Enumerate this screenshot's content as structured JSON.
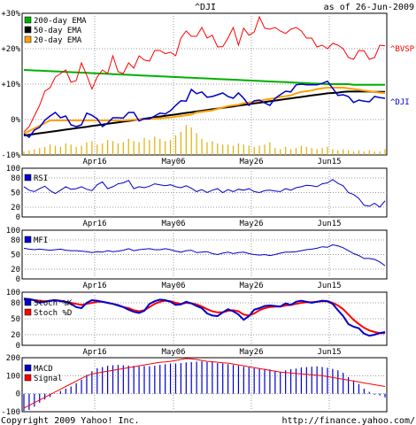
{
  "header": {
    "title": "^DJI",
    "asof": "as of 26-Jun-2009"
  },
  "footer": {
    "copyright": "Copyright 2009 Yahoo! Inc.",
    "url": "http://finance.yahoo.com/"
  },
  "x_ticks": [
    "Apr16",
    "May06",
    "May26",
    "Jun15"
  ],
  "chart_data": [
    {
      "type": "line",
      "panel": "price",
      "ylim": [
        -10,
        30
      ],
      "y_ticks": [
        "+30%",
        "+20%",
        "+10%",
        "0%",
        "-10%"
      ],
      "grid": true,
      "legend_position": "top-left",
      "legend": [
        {
          "label": "200-day EMA",
          "color": "#00b000"
        },
        {
          "label": "50-day EMA",
          "color": "#000000"
        },
        {
          "label": "20-day EMA",
          "color": "#ffa000"
        }
      ],
      "series_labels": [
        {
          "text": "^BVSP",
          "color": "#ff0000"
        },
        {
          "text": "^DJI",
          "color": "#0000cc"
        }
      ],
      "series": [
        {
          "name": "^BVSP",
          "color": "#ff0000",
          "values": [
            -3.5,
            -2,
            1,
            4,
            8,
            9,
            12,
            13,
            14,
            10.5,
            11,
            16,
            12.5,
            8.6,
            12,
            14,
            13,
            18,
            13.5,
            13,
            16,
            14.5,
            18,
            16.8,
            16.5,
            19.5,
            19.5,
            18.6,
            19,
            18,
            23,
            25,
            23.5,
            23.5,
            26,
            23,
            23.8,
            20.5,
            20.6,
            23,
            26,
            21,
            25.8,
            23.8,
            24.7,
            29,
            25.8,
            25.5,
            26,
            25,
            24.3,
            25.5,
            26,
            25,
            23,
            23,
            20.5,
            21,
            20,
            21.5,
            21,
            20,
            17.5,
            17,
            19.5,
            19.4,
            17,
            17.5,
            21,
            20.8
          ]
        },
        {
          "name": "^DJI",
          "color": "#0000cc",
          "values": [
            -4,
            -5,
            -3,
            -2.2,
            -0.2,
            1,
            2,
            0.5,
            1,
            -1.5,
            -2,
            -1.5,
            1.8,
            1.2,
            0.2,
            -2,
            -1,
            0.5,
            0.5,
            0.4,
            2,
            2,
            -0.4,
            0.2,
            0.2,
            1,
            1.8,
            1.6,
            2.5,
            4,
            5.3,
            5.2,
            8.5,
            7.3,
            7.8,
            6.3,
            6.5,
            7,
            7.5,
            6.5,
            6,
            7.5,
            6,
            4,
            5.3,
            5.5,
            4.7,
            4,
            6,
            7,
            8,
            7.8,
            9.8,
            10,
            9.8,
            9.8,
            9.8,
            10.2,
            10.8,
            8.8,
            6.8,
            7,
            6.5,
            4.8,
            5.5,
            5.2,
            5,
            6.5,
            6.2,
            6
          ]
        },
        {
          "name": "200-day EMA",
          "color": "#00b000",
          "values": [
            14,
            13.93,
            13.86,
            13.8,
            13.73,
            13.66,
            13.59,
            13.52,
            13.45,
            13.38,
            13.31,
            13.24,
            13.17,
            13.1,
            13.03,
            12.97,
            12.9,
            12.83,
            12.76,
            12.69,
            12.62,
            12.55,
            12.48,
            12.41,
            12.34,
            12.28,
            12.21,
            12.14,
            12.07,
            12,
            11.93,
            11.86,
            11.79,
            11.72,
            11.66,
            11.59,
            11.52,
            11.45,
            11.38,
            11.31,
            11.24,
            11.17,
            11.1,
            11.03,
            10.97,
            10.9,
            10.83,
            10.76,
            10.69,
            10.62,
            10.55,
            10.48,
            10.41,
            10.34,
            10.28,
            10.21,
            10.14,
            10.07,
            10,
            10,
            10,
            10,
            10,
            9.8,
            9.8,
            9.8,
            9.8,
            9.8,
            9.8,
            9.8
          ]
        },
        {
          "name": "50-day EMA",
          "color": "#000000",
          "values": [
            -4.5,
            -4.29,
            -4.09,
            -3.88,
            -3.68,
            -3.47,
            -3.27,
            -3.06,
            -2.86,
            -2.65,
            -2.45,
            -2.24,
            -2.04,
            -1.83,
            -1.63,
            -1.42,
            -1.21,
            -1.01,
            -0.8,
            -0.6,
            -0.39,
            -0.19,
            0.02,
            0.22,
            0.43,
            0.63,
            0.84,
            1.04,
            1.25,
            1.46,
            1.66,
            1.87,
            2.07,
            2.28,
            2.48,
            2.69,
            2.89,
            3.1,
            3.3,
            3.51,
            3.71,
            3.92,
            4.12,
            4.33,
            4.54,
            4.74,
            4.95,
            5.15,
            5.36,
            5.56,
            5.77,
            5.97,
            6.18,
            6.38,
            6.59,
            6.79,
            7,
            7.2,
            7.41,
            7.5,
            7.6,
            7.8,
            7.9,
            7.9,
            7.9,
            7.9,
            7.9,
            7.8,
            7.8,
            7.8
          ]
        },
        {
          "name": "20-day EMA",
          "color": "#ffa000",
          "values": [
            -4,
            -3.25,
            -2.5,
            -1.74,
            -0.99,
            -0.24,
            -0.24,
            -0.24,
            -0.24,
            -0.24,
            -0.24,
            -0.24,
            -0.24,
            -0.24,
            -0.24,
            -0.24,
            -0.24,
            -0.24,
            -0.24,
            -0.24,
            -0.16,
            -0.08,
            0,
            0.08,
            0.16,
            0.24,
            0.36,
            0.48,
            0.6,
            0.8,
            1,
            1.2,
            1.4,
            2,
            2.2,
            2.4,
            2.6,
            3,
            3.4,
            3.8,
            4,
            4.2,
            4.6,
            4.8,
            5,
            5.2,
            5.6,
            5.8,
            6,
            6.4,
            6.6,
            6.8,
            7.4,
            7.8,
            8,
            8.2,
            8.6,
            8.8,
            9,
            9,
            9,
            9,
            8.8,
            8.6,
            8.4,
            8.2,
            8,
            7.8,
            7.6,
            7.5
          ]
        }
      ],
      "volume_bars": [
        3,
        4,
        5,
        6,
        7,
        9,
        8,
        7,
        10,
        9,
        7,
        8,
        11,
        12,
        9,
        10,
        13,
        12,
        10,
        11,
        14,
        12,
        11,
        15,
        13,
        16,
        14,
        12,
        13,
        17,
        20,
        26,
        24,
        19,
        14,
        11,
        12,
        10,
        9,
        9,
        8,
        10,
        9,
        8,
        7,
        8,
        9,
        11,
        6,
        5,
        7,
        5,
        6,
        8,
        7,
        6,
        5,
        6,
        7,
        5,
        4,
        5,
        4,
        3,
        4,
        3,
        4,
        3,
        3,
        5
      ]
    },
    {
      "type": "line",
      "panel": "RSI",
      "ylim": [
        0,
        100
      ],
      "y_ticks": [
        "100",
        "80",
        "50",
        "20",
        "0"
      ],
      "series": [
        {
          "name": "RSI",
          "color": "#0000cc",
          "values": [
            62,
            55,
            52,
            58,
            63,
            54,
            48,
            55,
            62,
            57,
            58,
            62,
            57,
            54,
            66,
            72,
            58,
            62,
            68,
            70,
            75,
            58,
            62,
            60,
            63,
            68,
            66,
            64,
            66,
            62,
            60,
            64,
            59,
            52,
            56,
            50,
            55,
            58,
            50,
            56,
            52,
            57,
            55,
            58,
            52,
            50,
            54,
            55,
            53,
            52,
            58,
            55,
            60,
            62,
            65,
            64,
            62,
            68,
            70,
            77,
            69,
            64,
            50,
            46,
            38,
            24,
            22,
            28,
            20,
            33
          ]
        }
      ]
    },
    {
      "type": "line",
      "panel": "MFI",
      "ylim": [
        0,
        100
      ],
      "y_ticks": [
        "100",
        "80",
        "50",
        "20",
        "0"
      ],
      "series": [
        {
          "name": "MFI",
          "color": "#0000cc",
          "values": [
            63,
            61,
            60,
            61,
            60,
            59,
            60,
            61,
            59,
            58,
            58,
            57,
            56,
            54,
            56,
            55,
            58,
            56,
            57,
            59,
            62,
            58,
            60,
            61,
            62,
            60,
            60,
            62,
            60,
            57,
            55,
            58,
            59,
            54,
            55,
            56,
            52,
            50,
            53,
            55,
            52,
            54,
            55,
            52,
            50,
            49,
            50,
            48,
            50,
            53,
            55,
            55,
            56,
            58,
            60,
            61,
            63,
            66,
            65,
            70,
            68,
            64,
            58,
            52,
            48,
            42,
            42,
            40,
            35,
            27
          ]
        }
      ]
    },
    {
      "type": "line",
      "panel": "Stochastic",
      "ylim": [
        0,
        100
      ],
      "y_ticks": [
        "100",
        "80",
        "50",
        "20",
        "0"
      ],
      "series": [
        {
          "name": "Stoch %K",
          "color": "#0000cc",
          "values": [
            88,
            87,
            85,
            80,
            82,
            84,
            85,
            83,
            82,
            78,
            72,
            70,
            80,
            85,
            84,
            82,
            80,
            78,
            75,
            72,
            67,
            63,
            61,
            65,
            78,
            83,
            86,
            85,
            82,
            76,
            77,
            82,
            79,
            74,
            70,
            60,
            56,
            55,
            62,
            68,
            64,
            58,
            48,
            55,
            67,
            70,
            74,
            75,
            74,
            73,
            79,
            76,
            82,
            84,
            82,
            80,
            82,
            84,
            83,
            78,
            66,
            55,
            40,
            35,
            32,
            22,
            18,
            20,
            23,
            25
          ]
        },
        {
          "name": "Stoch %D",
          "color": "#ff0000",
          "values": [
            86,
            86,
            85,
            84,
            83,
            84,
            85,
            84,
            82,
            80,
            78,
            76,
            78,
            80,
            82,
            82,
            80,
            78,
            76,
            72,
            70,
            66,
            64,
            66,
            72,
            78,
            82,
            84,
            83,
            80,
            78,
            80,
            79,
            77,
            73,
            68,
            64,
            62,
            62,
            65,
            66,
            64,
            58,
            56,
            60,
            66,
            70,
            72,
            73,
            73,
            75,
            76,
            78,
            80,
            81,
            81,
            82,
            83,
            83,
            80,
            75,
            68,
            58,
            48,
            40,
            33,
            28,
            25,
            23,
            23
          ]
        }
      ]
    },
    {
      "type": "line",
      "panel": "MACD",
      "ylim": [
        -100,
        200
      ],
      "y_ticks": [
        "200",
        "100",
        "0",
        "-100"
      ],
      "series": [
        {
          "name": "Signal",
          "color": "#ff0000",
          "values": [
            -80,
            -65,
            -50,
            -35,
            -20,
            -5,
            10,
            25,
            40,
            55,
            70,
            85,
            100,
            110,
            115,
            120,
            125,
            130,
            135,
            140,
            145,
            150,
            155,
            160,
            165,
            170,
            175,
            177,
            180,
            185,
            190,
            195,
            193,
            190,
            185,
            180,
            178,
            175,
            172,
            170,
            165,
            160,
            155,
            150,
            145,
            140,
            135,
            130,
            125,
            120,
            118,
            115,
            112,
            110,
            108,
            105,
            102,
            100,
            95,
            90,
            85,
            80,
            75,
            70,
            65,
            60,
            55,
            50,
            45,
            40
          ]
        },
        {
          "name": "MACD",
          "color": "#0000cc",
          "values": [
            -95,
            -90,
            -72,
            -50,
            -32,
            -18,
            0,
            15,
            28,
            40,
            58,
            78,
            105,
            125,
            142,
            148,
            155,
            158,
            160,
            158,
            156,
            155,
            152,
            154,
            152,
            155,
            160,
            164,
            168,
            168,
            170,
            174,
            176,
            178,
            180,
            176,
            178,
            170,
            168,
            164,
            160,
            156,
            150,
            147,
            142,
            140,
            138,
            135,
            128,
            122,
            130,
            136,
            140,
            146,
            148,
            150,
            152,
            148,
            144,
            138,
            130,
            116,
            92,
            74,
            54,
            28,
            10,
            -5,
            -10,
            -20
          ]
        }
      ]
    }
  ]
}
